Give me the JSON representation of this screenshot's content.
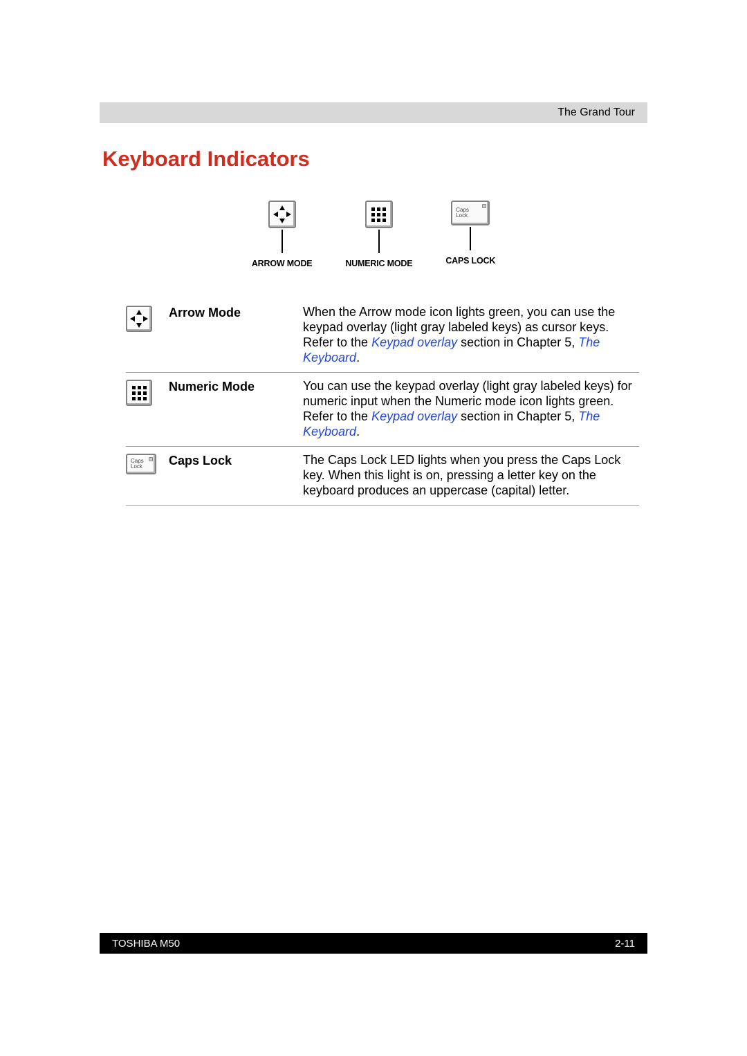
{
  "header": {
    "chapter": "The Grand Tour"
  },
  "title": "Keyboard Indicators",
  "diagram": {
    "items": [
      {
        "caption": "ARROW MODE"
      },
      {
        "caption": "NUMERIC MODE"
      },
      {
        "caption": "CAPS LOCK"
      }
    ],
    "caps_key_text": "Caps\nLock"
  },
  "rows": [
    {
      "label": "Arrow Mode",
      "desc_pre": "When the Arrow mode icon lights green, you can use the keypad overlay (light gray labeled keys) as cursor keys. Refer to the ",
      "link1": "Keypad overlay",
      "mid": " section in Chapter 5, ",
      "link2": "The Keyboard",
      "post": "."
    },
    {
      "label": "Numeric Mode",
      "desc_pre": "You can use the keypad overlay (light gray labeled keys) for numeric input when the Numeric mode icon lights green. Refer to the  ",
      "link1": "Keypad overlay",
      "mid": " section in Chapter 5, ",
      "link2": "The Keyboard",
      "post": "."
    },
    {
      "label": "Caps Lock",
      "desc_pre": "The Caps Lock LED lights when you press the Caps Lock key. When this light is on, pressing a letter key on the keyboard produces an uppercase (capital) letter.",
      "link1": "",
      "mid": "",
      "link2": "",
      "post": ""
    }
  ],
  "footer": {
    "left": "TOSHIBA M50",
    "right": "2-11"
  },
  "colors": {
    "title": "#cc2e1f",
    "link": "#2347d0",
    "header_bg": "#d8d8d8",
    "footer_bg": "#000000",
    "rule": "#9a9a9a"
  }
}
